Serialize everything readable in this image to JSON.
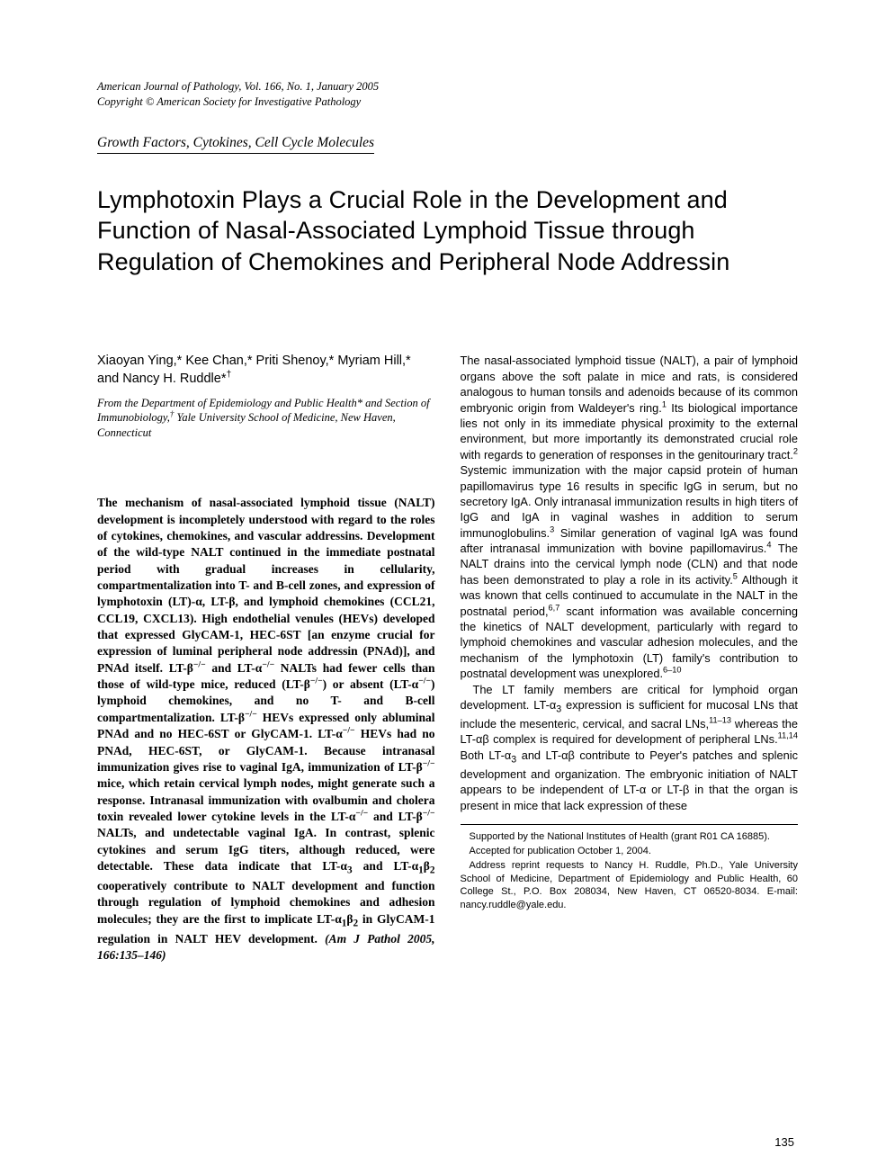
{
  "journal": {
    "line1": "American Journal of Pathology, Vol. 166, No. 1, January 2005",
    "line2": "Copyright © American Society for Investigative Pathology"
  },
  "section": "Growth Factors, Cytokines, Cell Cycle Molecules",
  "title": "Lymphotoxin Plays a Crucial Role in the Development and Function of Nasal-Associated Lymphoid Tissue through Regulation of Chemokines and Peripheral Node Addressin",
  "authors_html": "Xiaoyan Ying,* Kee Chan,* Priti Shenoy,* Myriam Hill,* and Nancy H. Ruddle*<sup>†</sup>",
  "affiliations_html": "From the Department of Epidemiology and Public Health* and Section of Immunobiology,<sup>†</sup> Yale University School of Medicine, New Haven, Connecticut",
  "abstract_html": "The mechanism of nasal-associated lymphoid tissue (NALT) development is incompletely understood with regard to the roles of cytokines, chemokines, and vascular addressins. Development of the wild-type NALT continued in the immediate postnatal period with gradual increases in cellularity, compartmentalization into T- and B-cell zones, and expression of lymphotoxin (LT)-α, LT-β, and lymphoid chemokines (CCL21, CCL19, CXCL13). High endothelial venules (HEVs) developed that expressed GlyCAM-1, HEC-6ST [an enzyme crucial for expression of luminal peripheral node addressin (PNAd)], and PNAd itself. LT-β<sup>−/−</sup> and LT-α<sup>−/−</sup> NALTs had fewer cells than those of wild-type mice, reduced (LT-β<sup>−/−</sup>) or absent (LT-α<sup>−/−</sup>) lymphoid chemokines, and no T- and B-cell compartmentalization. LT-β<sup>−/−</sup> HEVs expressed only abluminal PNAd and no HEC-6ST or GlyCAM-1. LT-α<sup>−/−</sup> HEVs had no PNAd, HEC-6ST, or GlyCAM-1. Because intranasal immunization gives rise to vaginal IgA, immunization of LT-β<sup>−/−</sup> mice, which retain cervical lymph nodes, might generate such a response. Intranasal immunization with ovalbumin and cholera toxin revealed lower cytokine levels in the LT-α<sup>−/−</sup> and LT-β<sup>−/−</sup> NALTs, and undetectable vaginal IgA. In contrast, splenic cytokines and serum IgG titers, although reduced, were detectable. These data indicate that LT-α<sub>3</sub> and LT-α<sub>1</sub>β<sub>2</sub> cooperatively contribute to NALT development and function through regulation of lymphoid chemokines and adhesion molecules; they are the first to implicate LT-α<sub>1</sub>β<sub>2</sub> in GlyCAM-1 regulation in NALT HEV development. <span class=\"cite\">(Am J Pathol 2005, 166:135–146)</span>",
  "intro_p1_html": "The nasal-associated lymphoid tissue (NALT), a pair of lymphoid organs above the soft palate in mice and rats, is considered analogous to human tonsils and adenoids because of its common embryonic origin from Waldeyer's ring.<sup>1</sup> Its biological importance lies not only in its immediate physical proximity to the external environment, but more importantly its demonstrated crucial role with regards to generation of responses in the genitourinary tract.<sup>2</sup> Systemic immunization with the major capsid protein of human papillomavirus type 16 results in specific IgG in serum, but no secretory IgA. Only intranasal immunization results in high titers of IgG and IgA in vaginal washes in addition to serum immunoglobulins.<sup>3</sup> Similar generation of vaginal IgA was found after intranasal immunization with bovine papillomavirus.<sup>4</sup> The NALT drains into the cervical lymph node (CLN) and that node has been demonstrated to play a role in its activity.<sup>5</sup> Although it was known that cells continued to accumulate in the NALT in the postnatal period,<sup>6,7</sup> scant information was available concerning the kinetics of NALT development, particularly with regard to lymphoid chemokines and vascular adhesion molecules, and the mechanism of the lymphotoxin (LT) family's contribution to postnatal development was unexplored.<sup>6–10</sup>",
  "intro_p2_html": "The LT family members are critical for lymphoid organ development. LT-α<sub>3</sub> expression is sufficient for mucosal LNs that include the mesenteric, cervical, and sacral LNs,<sup>11–13</sup> whereas the LT-αβ complex is required for development of peripheral LNs.<sup>11,14</sup> Both LT-α<sub>3</sub> and LT-αβ contribute to Peyer's patches and splenic development and organization. The embryonic initiation of NALT appears to be independent of LT-α or LT-β in that the organ is present in mice that lack expression of these",
  "footnotes": {
    "support": "Supported by the National Institutes of Health (grant R01 CA 16885).",
    "accepted": "Accepted for publication October 1, 2004.",
    "address": "Address reprint requests to Nancy H. Ruddle, Ph.D., Yale University School of Medicine, Department of Epidemiology and Public Health, 60 College St., P.O. Box 208034, New Haven, CT 06520-8034. E-mail: nancy.ruddle@yale.edu."
  },
  "page_number": "135"
}
